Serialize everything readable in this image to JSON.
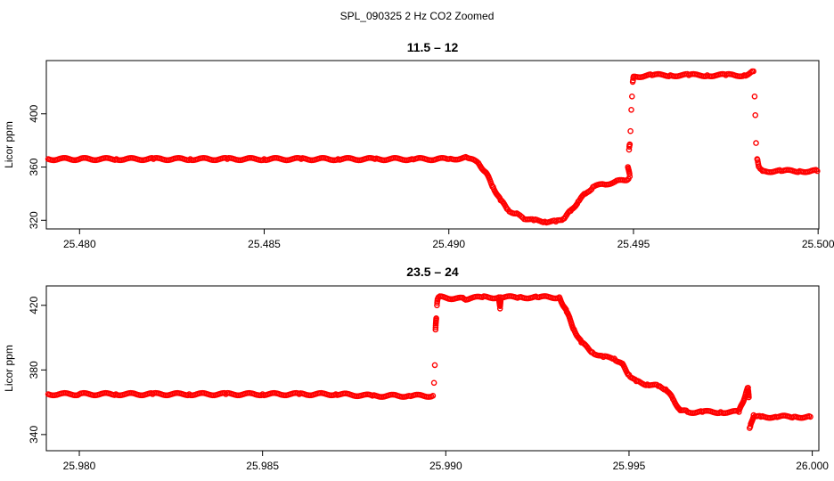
{
  "figure": {
    "title": "SPL_090325  2 Hz CO2 Zoomed"
  },
  "style": {
    "point_color": "#ff0000",
    "axis_color": "#000000"
  },
  "chart_data": [
    {
      "type": "scatter",
      "title": "11.5 – 12",
      "ylabel": "Licor ppm",
      "xlabel": "",
      "xlim": [
        25.4791,
        25.50002
      ],
      "ylim": [
        313.5,
        440
      ],
      "x_ticks": [
        25.48,
        25.485,
        25.49,
        25.495,
        25.5
      ],
      "x_tick_labels": [
        "25.480",
        "25.485",
        "25.490",
        "25.495",
        "25.500"
      ],
      "y_ticks": [
        320,
        360,
        400
      ],
      "y_tick_labels": [
        "320",
        "360",
        "400"
      ],
      "grid": false,
      "legend": "none",
      "series": [
        {
          "points": [
            [
              25.47915,
              366
            ],
            [
              25.48,
              366
            ],
            [
              25.481,
              366
            ],
            [
              25.482,
              366
            ],
            [
              25.483,
              366
            ],
            [
              25.484,
              366
            ],
            [
              25.485,
              366
            ],
            [
              25.486,
              366
            ],
            [
              25.487,
              366
            ],
            [
              25.488,
              366
            ],
            [
              25.489,
              366
            ],
            [
              25.49,
              366
            ],
            [
              25.4905,
              367
            ],
            [
              25.4908,
              363
            ],
            [
              25.491,
              356
            ],
            [
              25.4912,
              345
            ],
            [
              25.4914,
              335
            ],
            [
              25.4916,
              328
            ],
            [
              25.4918,
              325
            ],
            [
              25.492,
              322
            ],
            [
              25.4923,
              320
            ],
            [
              25.4926,
              319
            ],
            [
              25.4929,
              319
            ],
            [
              25.4931,
              321
            ],
            [
              25.4933,
              327
            ],
            [
              25.4935,
              334
            ],
            [
              25.4937,
              340
            ],
            [
              25.4939,
              345
            ],
            [
              25.4942,
              347
            ],
            [
              25.4945,
              349
            ],
            [
              25.4948,
              350
            ],
            [
              25.4949,
              353
            ],
            [
              25.49485,
              360
            ],
            [
              25.49488,
              373
            ],
            [
              25.4949,
              377
            ],
            [
              25.49492,
              387
            ],
            [
              25.49494,
              403
            ],
            [
              25.49496,
              413
            ],
            [
              25.49498,
              424
            ],
            [
              25.495,
              428
            ],
            [
              25.4955,
              429
            ],
            [
              25.496,
              429
            ],
            [
              25.4965,
              429
            ],
            [
              25.497,
              429
            ],
            [
              25.4975,
              429
            ],
            [
              25.498,
              429
            ],
            [
              25.49825,
              432
            ],
            [
              25.49828,
              413
            ],
            [
              25.4983,
              399
            ],
            [
              25.49832,
              378
            ],
            [
              25.49835,
              366
            ],
            [
              25.4984,
              360
            ],
            [
              25.4985,
              357
            ],
            [
              25.499,
              357
            ],
            [
              25.4995,
              357
            ],
            [
              25.49998,
              357
            ]
          ]
        }
      ]
    },
    {
      "type": "scatter",
      "title": "23.5 – 24",
      "ylabel": "Licor ppm",
      "xlabel": "",
      "xlim": [
        25.9791,
        26.00018
      ],
      "ylim": [
        330,
        432
      ],
      "x_ticks": [
        25.98,
        25.985,
        25.99,
        25.995,
        26.0
      ],
      "x_tick_labels": [
        "25.980",
        "25.985",
        "25.990",
        "25.995",
        "26.000"
      ],
      "y_ticks": [
        340,
        380,
        420
      ],
      "y_tick_labels": [
        "340",
        "380",
        "420"
      ],
      "grid": false,
      "legend": "none",
      "series": [
        {
          "points": [
            [
              25.97915,
              365
            ],
            [
              25.98,
              365
            ],
            [
              25.981,
              365
            ],
            [
              25.982,
              365
            ],
            [
              25.983,
              365
            ],
            [
              25.984,
              365
            ],
            [
              25.985,
              365
            ],
            [
              25.986,
              365
            ],
            [
              25.987,
              365
            ],
            [
              25.988,
              364
            ],
            [
              25.989,
              364
            ],
            [
              25.98965,
              364
            ],
            [
              25.98968,
              372
            ],
            [
              25.9897,
              383
            ],
            [
              25.98972,
              405
            ],
            [
              25.98974,
              412
            ],
            [
              25.98976,
              420
            ],
            [
              25.98978,
              424
            ],
            [
              25.9898,
              425
            ],
            [
              25.9905,
              424
            ],
            [
              25.991,
              425
            ],
            [
              25.99145,
              425
            ],
            [
              25.99148,
              418
            ],
            [
              25.9915,
              425
            ],
            [
              25.992,
              425
            ],
            [
              25.9925,
              425
            ],
            [
              25.9931,
              425
            ],
            [
              25.9933,
              416
            ],
            [
              25.9935,
              405
            ],
            [
              25.9937,
              397
            ],
            [
              25.994,
              391
            ],
            [
              25.9943,
              388
            ],
            [
              25.9946,
              387
            ],
            [
              25.9948,
              384
            ],
            [
              25.995,
              377
            ],
            [
              25.9952,
              373
            ],
            [
              25.9955,
              371
            ],
            [
              25.9958,
              370
            ],
            [
              25.996,
              368
            ],
            [
              25.9962,
              362
            ],
            [
              25.9964,
              355
            ],
            [
              25.9966,
              354
            ],
            [
              25.997,
              354
            ],
            [
              25.9975,
              354
            ],
            [
              25.998,
              354
            ],
            [
              25.99825,
              369
            ],
            [
              25.99827,
              363
            ],
            [
              25.99829,
              344
            ],
            [
              25.99831,
              345
            ],
            [
              25.9984,
              352
            ],
            [
              25.9986,
              351
            ],
            [
              25.999,
              351
            ],
            [
              25.9995,
              351
            ],
            [
              25.99995,
              351
            ]
          ]
        }
      ]
    }
  ]
}
